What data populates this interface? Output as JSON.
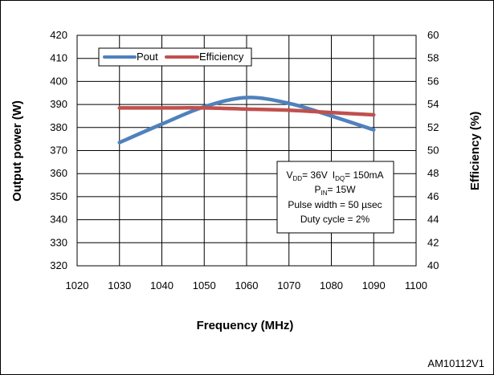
{
  "chart_data": {
    "type": "line",
    "xlabel": "Frequency (MHz)",
    "ylabel": "Output power (W)",
    "y2label": "Efficiency (%)",
    "xlim": [
      1020,
      1100
    ],
    "ylim": [
      320,
      420
    ],
    "y2lim": [
      40,
      60
    ],
    "x_ticks": [
      "1020",
      "1030",
      "1040",
      "1050",
      "1060",
      "1070",
      "1080",
      "1090",
      "1100"
    ],
    "y_ticks": [
      "320",
      "330",
      "340",
      "350",
      "360",
      "370",
      "380",
      "390",
      "400",
      "410",
      "420"
    ],
    "y2_ticks": [
      "40",
      "42",
      "44",
      "46",
      "48",
      "50",
      "52",
      "54",
      "56",
      "58",
      "60"
    ],
    "grid": true,
    "legend_position": "top-left",
    "series": [
      {
        "name": "Pout",
        "axis": "left",
        "color": "#4F81BD",
        "x": [
          1030,
          1040,
          1050,
          1060,
          1070,
          1080,
          1090
        ],
        "y": [
          373.5,
          381.5,
          389,
          393,
          390.5,
          385,
          379
        ]
      },
      {
        "name": "Efficiency",
        "axis": "right",
        "color": "#C0504D",
        "x": [
          1030,
          1040,
          1050,
          1060,
          1070,
          1080,
          1090
        ],
        "y": [
          53.7,
          53.7,
          53.7,
          53.6,
          53.5,
          53.3,
          53.1
        ]
      }
    ],
    "conditions": {
      "vdd_label": "V",
      "vdd_sub": "DD",
      "vdd_value": "= 36V",
      "idq_label": "I",
      "idq_sub": "DQ",
      "idq_value": "= 150mA",
      "pin_label": "P",
      "pin_sub": "IN",
      "pin_value": "= 15W",
      "pulse_width": "Pulse width = 50 µsec",
      "duty_cycle": "Duty cycle = 2%"
    }
  },
  "figure_ref": "AM10112V1"
}
